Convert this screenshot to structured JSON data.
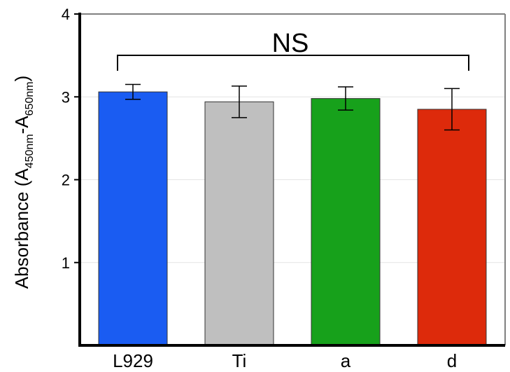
{
  "chart_data": {
    "type": "bar",
    "categories": [
      "L929",
      "Ti",
      "a",
      "d"
    ],
    "values": [
      3.06,
      2.94,
      2.98,
      2.85
    ],
    "errors": [
      0.09,
      0.19,
      0.14,
      0.25
    ],
    "colors": [
      "#1a5cf2",
      "#bfbfbf",
      "#17a11b",
      "#dd2a0b"
    ],
    "ylabel": {
      "prefix": "Absorbance (A",
      "sub1": "450nm",
      "mid": "-A",
      "sub2": "650nm",
      "suffix": ")"
    },
    "ylim": [
      0,
      4
    ],
    "yticks": [
      {
        "value": 1,
        "label": "1"
      },
      {
        "value": 2,
        "label": "2"
      },
      {
        "value": 3,
        "label": "3"
      },
      {
        "value": 4,
        "label": "4"
      }
    ],
    "grid": true,
    "annotation": "NS"
  }
}
